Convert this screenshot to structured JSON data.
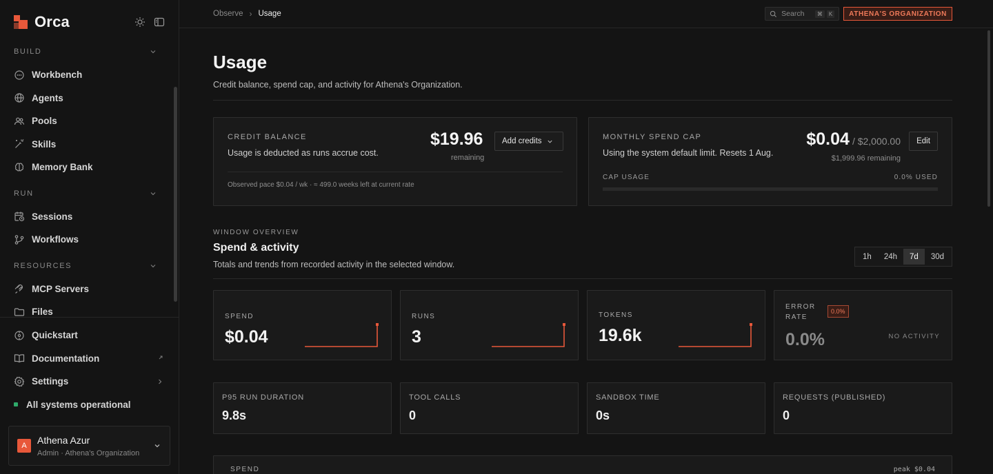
{
  "sidebar": {
    "brand": "Orca",
    "sections": [
      {
        "title": "BUILD",
        "items": [
          "Workbench",
          "Agents",
          "Pools",
          "Skills",
          "Memory Bank"
        ]
      },
      {
        "title": "RUN",
        "items": [
          "Sessions",
          "Workflows"
        ]
      },
      {
        "title": "RESOURCES",
        "items": [
          "MCP Servers",
          "Files"
        ]
      }
    ],
    "bottom": [
      "Quickstart",
      "Documentation",
      "Settings"
    ],
    "status": "All systems operational",
    "user": {
      "initial": "A",
      "name": "Athena Azur",
      "sub": "Admin · Athena's Organization"
    }
  },
  "topbar": {
    "crumbs": [
      "Observe",
      "Usage"
    ],
    "search_placeholder": "Search",
    "kbd": [
      "⌘",
      "K"
    ],
    "org": "ATHENA'S ORGANIZATION"
  },
  "page": {
    "title": "Usage",
    "subtitle": "Credit balance, spend cap, and activity for Athena's Organization."
  },
  "credit": {
    "label": "CREDIT BALANCE",
    "desc": "Usage is deducted as runs accrue cost.",
    "amount": "$19.96",
    "remaining": "remaining",
    "button": "Add credits",
    "pace": "Observed pace $0.04 / wk · ≈ 499.0 weeks left at current rate"
  },
  "spend_cap": {
    "label": "MONTHLY SPEND CAP",
    "desc": "Using the system default limit. Resets 1 Aug.",
    "amount": "$0.04",
    "of": "/ $2,000.00",
    "remaining": "$1,999.96 remaining",
    "button": "Edit",
    "usage_label": "CAP USAGE",
    "usage_pct": "0.0% USED",
    "usage_fraction": 2e-05
  },
  "overview": {
    "label": "WINDOW OVERVIEW",
    "title": "Spend & activity",
    "subtitle": "Totals and trends from recorded activity in the selected window.",
    "ranges": [
      "1h",
      "24h",
      "7d",
      "30d"
    ],
    "active_range": "7d"
  },
  "stats": [
    {
      "label": "SPEND",
      "value": "$0.04"
    },
    {
      "label": "RUNS",
      "value": "3"
    },
    {
      "label": "TOKENS",
      "value": "19.6k"
    }
  ],
  "error_stat": {
    "label": "ERROR RATE",
    "badge": "0.0%",
    "value": "0.0%",
    "note": "NO ACTIVITY"
  },
  "stats2": [
    {
      "label": "P95 RUN DURATION",
      "value": "9.8s"
    },
    {
      "label": "TOOL CALLS",
      "value": "0"
    },
    {
      "label": "SANDBOX TIME",
      "value": "0s"
    },
    {
      "label": "REQUESTS (PUBLISHED)",
      "value": "0"
    }
  ],
  "spend_panel": {
    "label": "SPEND",
    "peak": "peak $0.04"
  },
  "colors": {
    "accent": "#e8583a",
    "status_ok": "#2faa6a"
  }
}
